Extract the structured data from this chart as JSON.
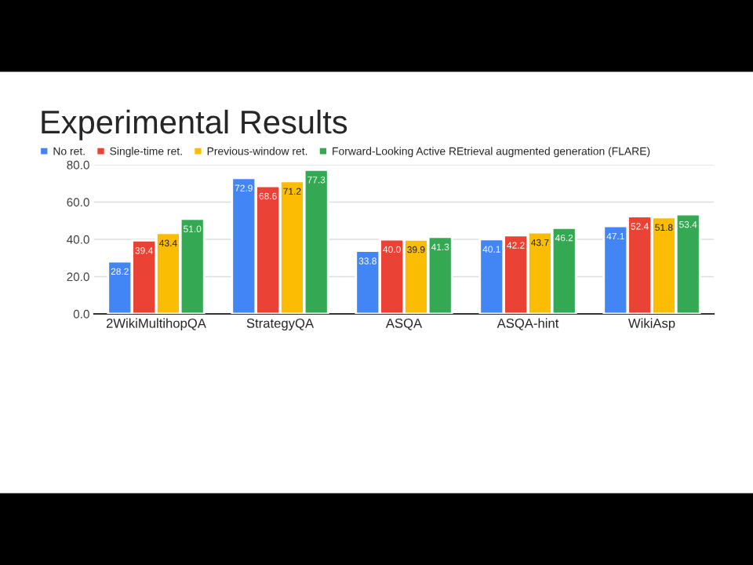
{
  "chart_data": {
    "type": "bar",
    "title": "Experimental Results",
    "categories": [
      "2WikiMultihopQA",
      "StrategyQA",
      "ASQA",
      "ASQA-hint",
      "WikiAsp"
    ],
    "series": [
      {
        "name": "No ret.",
        "color": "#4285f4",
        "values": [
          28.2,
          72.9,
          33.8,
          40.1,
          47.1
        ],
        "value_labels": [
          "28.2",
          "72.9",
          "33.8",
          "40.1",
          "47.1"
        ]
      },
      {
        "name": "Single-time ret.",
        "color": "#ea4335",
        "values": [
          39.4,
          68.6,
          40.0,
          42.2,
          52.4
        ],
        "value_labels": [
          "39.4",
          "68.6",
          "40.0",
          "42.2",
          "52.4"
        ]
      },
      {
        "name": "Previous-window ret.",
        "color": "#fbbc04",
        "values": [
          43.4,
          71.2,
          39.9,
          43.7,
          51.8
        ],
        "value_labels": [
          "43.4",
          "71.2",
          "39.9",
          "43.7",
          "51.8"
        ]
      },
      {
        "name": "Forward-Looking Active REtrieval augmented generation (FLARE)",
        "color": "#34a853",
        "values": [
          51.0,
          77.3,
          41.3,
          46.2,
          53.4
        ],
        "value_labels": [
          "51.0",
          "77.3",
          "41.3",
          "46.2",
          "53.4"
        ]
      }
    ],
    "ylim": [
      0,
      80
    ],
    "yticks": [
      {
        "value": 0,
        "label": "0.0"
      },
      {
        "value": 20,
        "label": "20.0"
      },
      {
        "value": 40,
        "label": "40.0"
      },
      {
        "value": 60,
        "label": "60.0"
      },
      {
        "value": 80,
        "label": "80.0"
      }
    ],
    "grid": "y",
    "legend": "top left"
  }
}
